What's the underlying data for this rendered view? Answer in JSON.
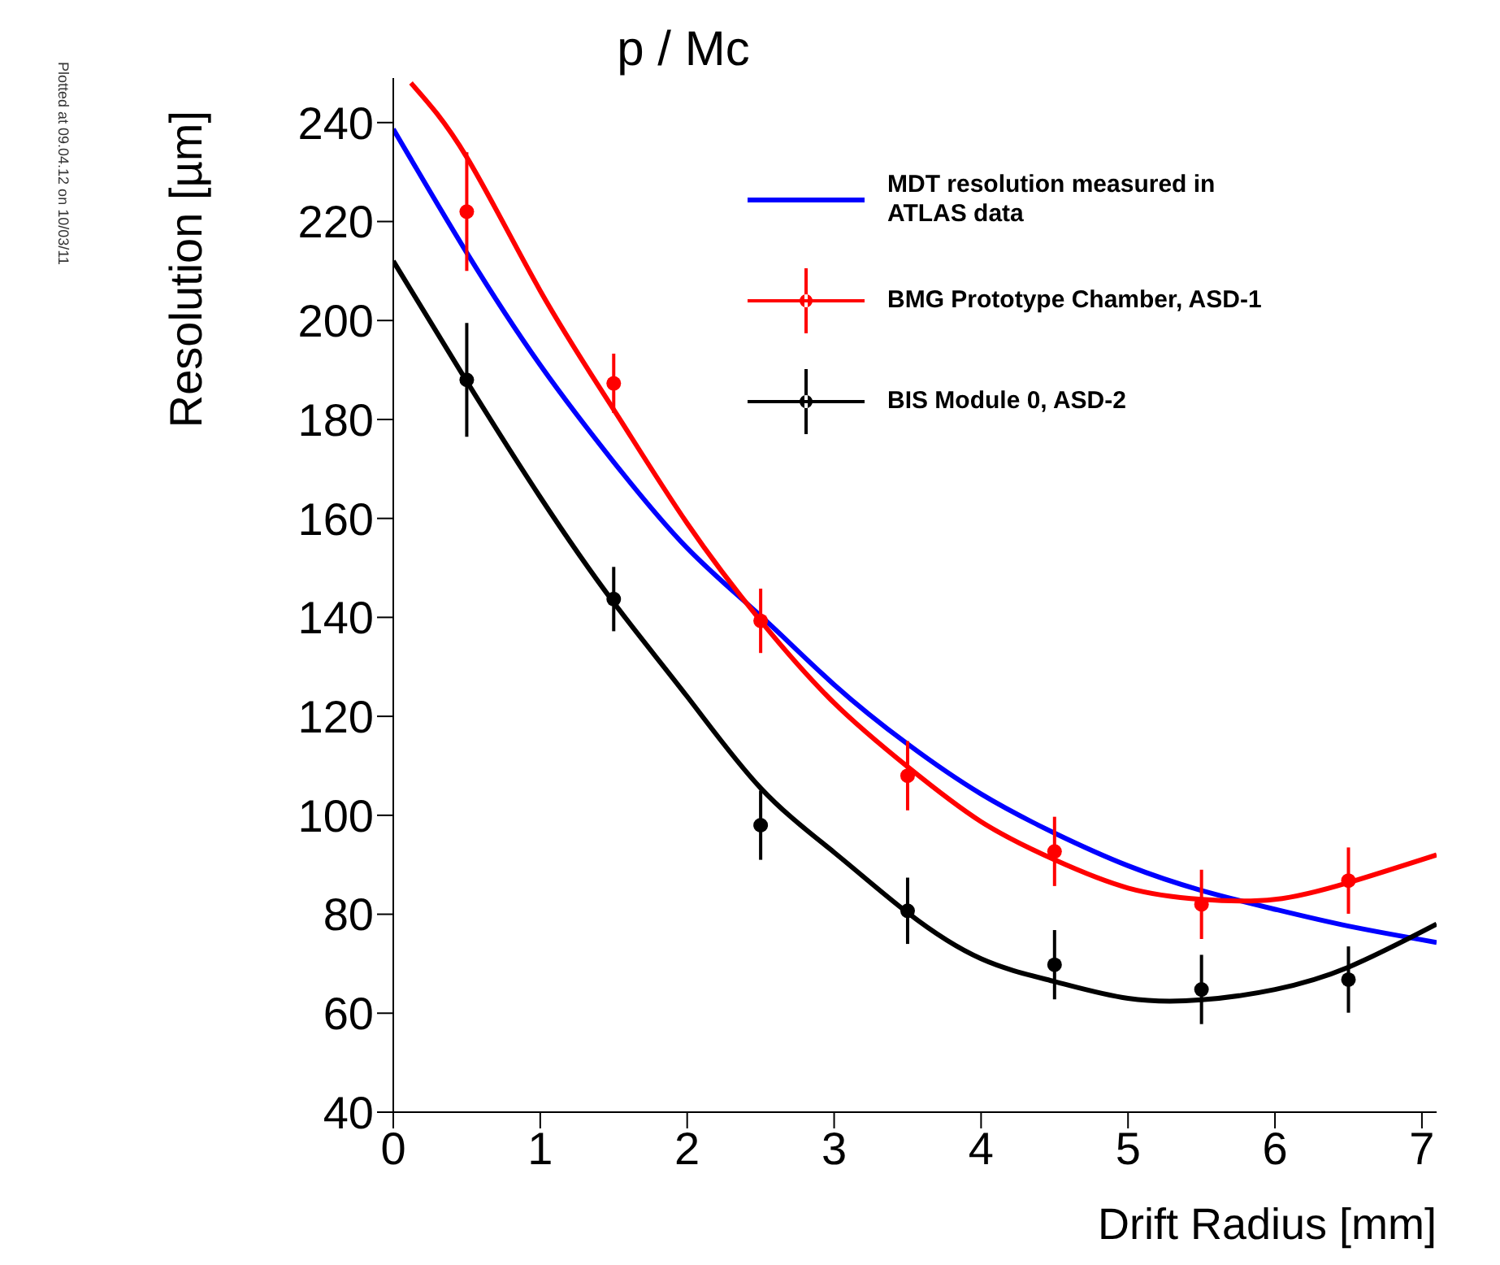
{
  "chart_data": {
    "type": "scatter",
    "title": "p / Mc",
    "xlabel": "Drift Radius [mm]",
    "ylabel": "Resolution [µm]",
    "annotations": [
      "Plotted at 09.04.12 on 10/03/11"
    ],
    "xlim": [
      0,
      7.1
    ],
    "ylim": [
      40,
      249
    ],
    "xticks": [
      0,
      1,
      2,
      3,
      4,
      5,
      6,
      7
    ],
    "yticks": [
      40,
      60,
      80,
      100,
      120,
      140,
      160,
      180,
      200,
      220,
      240
    ],
    "grid": false,
    "legend": "top right",
    "series": [
      {
        "type": "line",
        "name": "MDT resolution measured in ATLAS data",
        "color": "#0000ff",
        "marker": "none",
        "line_style": "solid",
        "x": [
          0,
          0.5,
          1,
          1.5,
          2,
          2.5,
          3,
          3.5,
          4,
          4.5,
          5,
          5.5,
          6,
          6.5,
          7.1
        ],
        "values": [
          238.7,
          213.7,
          191,
          171.4,
          154,
          140.3,
          126.4,
          114.4,
          104.3,
          96.4,
          89.8,
          84.8,
          81,
          77.6,
          74.3
        ]
      },
      {
        "type": "scatter",
        "name": "BMG Prototype Chamber, ASD-1",
        "color": "#ff0000",
        "marker": "circle",
        "x": [
          0.5,
          1.5,
          2.5,
          3.5,
          4.5,
          5.5,
          6.5
        ],
        "values": [
          222,
          187.3,
          139.3,
          108,
          92.7,
          82,
          86.8
        ],
        "errors": [
          12,
          6,
          6.5,
          7,
          7,
          7,
          6.7
        ]
      },
      {
        "type": "scatter",
        "name": "BIS Module 0, ASD-2",
        "color": "#000000",
        "marker": "circle",
        "x": [
          0.5,
          1.5,
          2.5,
          3.5,
          4.5,
          5.5,
          6.5
        ],
        "values": [
          188,
          143.7,
          98,
          80.7,
          69.8,
          64.8,
          66.8
        ],
        "errors": [
          11.5,
          6.5,
          7,
          6.7,
          7,
          7,
          6.7
        ]
      },
      {
        "type": "line",
        "color": "#ff0000",
        "marker": "none",
        "line_style": "solid",
        "x": [
          0.12,
          0.5,
          1,
          1.5,
          2,
          2.5,
          3,
          3.5,
          4,
          4.5,
          5,
          5.5,
          6,
          6.5,
          7.1
        ],
        "values": [
          248,
          233,
          206,
          182,
          159,
          139.3,
          122.7,
          109.8,
          98.7,
          91,
          85.3,
          83,
          83,
          86.4,
          92
        ]
      },
      {
        "type": "line",
        "color": "#000000",
        "marker": "none",
        "line_style": "solid",
        "x": [
          0,
          0.5,
          1,
          1.5,
          2,
          2.5,
          3,
          3.5,
          4,
          4.5,
          5,
          5.5,
          6,
          6.5,
          7.1
        ],
        "values": [
          212,
          187.7,
          164.3,
          143,
          124,
          105.5,
          92.5,
          80.3,
          71,
          66.4,
          63,
          62.7,
          64.8,
          69.3,
          78
        ]
      }
    ]
  }
}
